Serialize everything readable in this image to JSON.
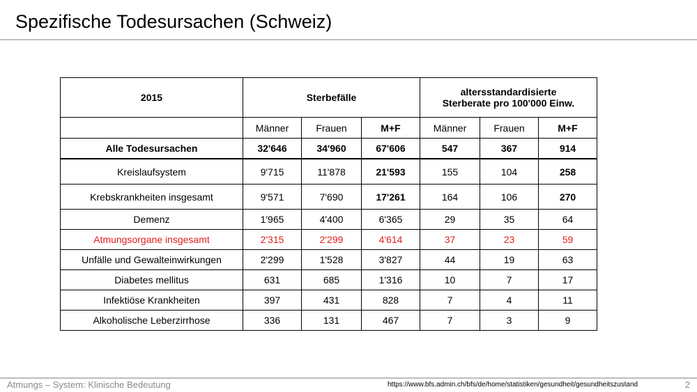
{
  "slide": {
    "title": "Spezifische Todesursachen (Schweiz)",
    "footer_left": "Atmungs – System:  Klinische Bedeutung",
    "footer_url": "https://www.bfs.admin.ch/bfs/de/home/statistiken/gesundheit/gesundheitszustand",
    "page_number": "2"
  },
  "table": {
    "year": "2015",
    "deaths_header": "Sterbefälle",
    "rate_header_line1": "altersstandardisierte",
    "rate_header_line2": "Sterberate pro 100'000 Einw.",
    "subheaders": [
      "Männer",
      "Frauen",
      "M+F",
      "Männer",
      "Frauen",
      "M+F"
    ],
    "total": {
      "label": "Alle Todesursachen",
      "values": [
        "32'646",
        "34'960",
        "67'606",
        "547",
        "367",
        "914"
      ]
    },
    "rows": [
      {
        "label": "Kreislaufsystem",
        "values": [
          "9'715",
          "11'878",
          "21'593",
          "155",
          "104",
          "258"
        ]
      },
      {
        "label": "Krebskrankheiten insgesamt",
        "values": [
          "9'571",
          "7'690",
          "17'261",
          "164",
          "106",
          "270"
        ]
      },
      {
        "label": "Demenz",
        "values": [
          "1'965",
          "4'400",
          "6'365",
          "29",
          "35",
          "64"
        ]
      },
      {
        "label": "Atmungsorgane insgesamt",
        "values": [
          "2'315",
          "2'299",
          "4'614",
          "37",
          "23",
          "59"
        ]
      },
      {
        "label": "Unfälle und Gewalteinwirkungen",
        "values": [
          "2'299",
          "1'528",
          "3'827",
          "44",
          "19",
          "63"
        ]
      },
      {
        "label": "Diabetes mellitus",
        "values": [
          "631",
          "685",
          "1'316",
          "10",
          "7",
          "17"
        ]
      },
      {
        "label": "Infektiöse Krankheiten",
        "values": [
          "397",
          "431",
          "828",
          "7",
          "4",
          "11"
        ]
      },
      {
        "label": "Alkoholische Leberzirrhose",
        "values": [
          "336",
          "131",
          "467",
          "7",
          "3",
          "9"
        ]
      }
    ],
    "highlight_color": "#e0201d"
  }
}
